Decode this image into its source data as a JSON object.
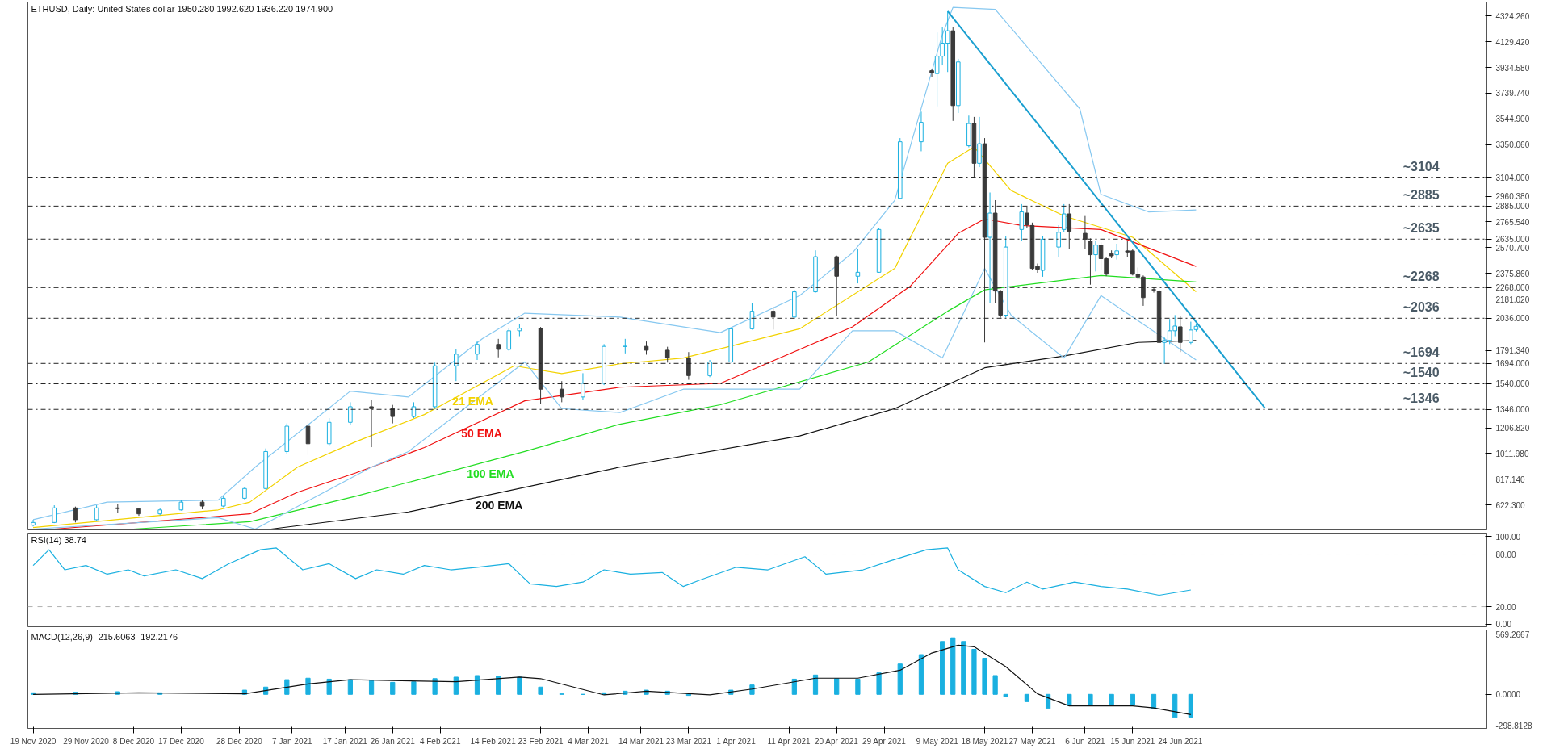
{
  "chart_data": [
    {
      "type": "candlestick",
      "title": "ETHUSD, Daily: United States dollar 1950.280 1992.620 1936.220 1974.900",
      "x": [
        "2020-11-19",
        "2020-11-23",
        "2020-11-27",
        "2020-12-01",
        "2020-12-05",
        "2020-12-09",
        "2020-12-13",
        "2020-12-17",
        "2020-12-21",
        "2020-12-25",
        "2020-12-29",
        "2021-01-02",
        "2021-01-06",
        "2021-01-10",
        "2021-01-14",
        "2021-01-18",
        "2021-01-22",
        "2021-01-26",
        "2021-01-30",
        "2021-02-03",
        "2021-02-07",
        "2021-02-11",
        "2021-02-15",
        "2021-02-17",
        "2021-02-19",
        "2021-02-23",
        "2021-02-27",
        "2021-03-03",
        "2021-03-07",
        "2021-03-11",
        "2021-03-15",
        "2021-03-19",
        "2021-03-23",
        "2021-03-27",
        "2021-03-31",
        "2021-04-04",
        "2021-04-08",
        "2021-04-12",
        "2021-04-16",
        "2021-04-20",
        "2021-04-24",
        "2021-04-28",
        "2021-05-02",
        "2021-05-06",
        "2021-05-08",
        "2021-05-09",
        "2021-05-10",
        "2021-05-11",
        "2021-05-12",
        "2021-05-13",
        "2021-05-15",
        "2021-05-16",
        "2021-05-17",
        "2021-05-18",
        "2021-05-19",
        "2021-05-20",
        "2021-05-21",
        "2021-05-22",
        "2021-05-25",
        "2021-05-26",
        "2021-05-27",
        "2021-05-28",
        "2021-05-29",
        "2021-06-01",
        "2021-06-02",
        "2021-06-03",
        "2021-06-06",
        "2021-06-07",
        "2021-06-08",
        "2021-06-09",
        "2021-06-10",
        "2021-06-11",
        "2021-06-12",
        "2021-06-14",
        "2021-06-15",
        "2021-06-16",
        "2021-06-17",
        "2021-06-19",
        "2021-06-20",
        "2021-06-21",
        "2021-06-22",
        "2021-06-23",
        "2021-06-24",
        "2021-06-26",
        "2021-06-27"
      ],
      "ohlc": [
        [
          470,
          510,
          460,
          490
        ],
        [
          490,
          620,
          485,
          600
        ],
        [
          600,
          610,
          490,
          511
        ],
        [
          511,
          620,
          505,
          600
        ],
        [
          600,
          630,
          560,
          595
        ],
        [
          595,
          600,
          540,
          555
        ],
        [
          555,
          600,
          545,
          585
        ],
        [
          585,
          660,
          580,
          644
        ],
        [
          644,
          660,
          590,
          614
        ],
        [
          614,
          690,
          605,
          673
        ],
        [
          673,
          760,
          665,
          747
        ],
        [
          747,
          1050,
          740,
          1027
        ],
        [
          1027,
          1240,
          1010,
          1219
        ],
        [
          1219,
          1270,
          1000,
          1086
        ],
        [
          1086,
          1280,
          1070,
          1248
        ],
        [
          1248,
          1400,
          1230,
          1366
        ],
        [
          1366,
          1420,
          1060,
          1352
        ],
        [
          1352,
          1380,
          1240,
          1292
        ],
        [
          1292,
          1400,
          1280,
          1366
        ],
        [
          1366,
          1700,
          1350,
          1676
        ],
        [
          1676,
          1800,
          1560,
          1764
        ],
        [
          1764,
          1860,
          1720,
          1838
        ],
        [
          1838,
          1880,
          1740,
          1800
        ],
        [
          1800,
          1960,
          1790,
          1941
        ],
        [
          1941,
          1990,
          1900,
          1960
        ],
        [
          1960,
          1970,
          1390,
          1499
        ],
        [
          1499,
          1560,
          1400,
          1440
        ],
        [
          1440,
          1620,
          1420,
          1543
        ],
        [
          1543,
          1840,
          1530,
          1823
        ],
        [
          1823,
          1880,
          1770,
          1823
        ],
        [
          1823,
          1860,
          1760,
          1794
        ],
        [
          1794,
          1820,
          1700,
          1735
        ],
        [
          1735,
          1780,
          1570,
          1602
        ],
        [
          1602,
          1720,
          1590,
          1705
        ],
        [
          1705,
          1960,
          1700,
          1956
        ],
        [
          1956,
          2150,
          1950,
          2089
        ],
        [
          2089,
          2120,
          1950,
          2045
        ],
        [
          2045,
          2250,
          2040,
          2236
        ],
        [
          2236,
          2550,
          2230,
          2502
        ],
        [
          2502,
          2510,
          2050,
          2354
        ],
        [
          2354,
          2560,
          2300,
          2384
        ],
        [
          2384,
          2720,
          2380,
          2708
        ],
        [
          2944,
          3400,
          2940,
          3372
        ],
        [
          3372,
          3600,
          3300,
          3519
        ],
        [
          3910,
          3920,
          3860,
          3894
        ],
        [
          3888,
          4200,
          3640,
          4020
        ],
        [
          4020,
          4240,
          3950,
          4118
        ],
        [
          4118,
          4360,
          3900,
          4212
        ],
        [
          4212,
          4240,
          3530,
          3646
        ],
        [
          3646,
          4000,
          3590,
          3976
        ],
        [
          3342,
          3570,
          3330,
          3510
        ],
        [
          3510,
          3560,
          3100,
          3209
        ],
        [
          3209,
          3560,
          3180,
          3357
        ],
        [
          3357,
          3400,
          1853,
          2649
        ],
        [
          2649,
          2988,
          2148,
          2832
        ],
        [
          2832,
          2930,
          2148,
          2242
        ],
        [
          2242,
          2250,
          2040,
          2059
        ],
        [
          2059,
          2660,
          2040,
          2575
        ],
        [
          2708,
          2900,
          2620,
          2841
        ],
        [
          2832,
          2880,
          2720,
          2743
        ],
        [
          2738,
          2760,
          2400,
          2413
        ],
        [
          2428,
          2450,
          2380,
          2407
        ],
        [
          2398,
          2660,
          2350,
          2634
        ],
        [
          2575,
          2740,
          2500,
          2687
        ],
        [
          2708,
          2900,
          2690,
          2826
        ],
        [
          2826,
          2900,
          2560,
          2693
        ],
        [
          2679,
          2810,
          2560,
          2634
        ],
        [
          2620,
          2640,
          2290,
          2517
        ],
        [
          2517,
          2620,
          2390,
          2590
        ],
        [
          2590,
          2610,
          2400,
          2487
        ],
        [
          2487,
          2500,
          2355,
          2369
        ],
        [
          2525,
          2550,
          2490,
          2508
        ],
        [
          2517,
          2600,
          2480,
          2546
        ],
        [
          2546,
          2620,
          2500,
          2537
        ],
        [
          2546,
          2560,
          2360,
          2369
        ],
        [
          2369,
          2420,
          2330,
          2348
        ],
        [
          2348,
          2360,
          2130,
          2192
        ],
        [
          2253,
          2270,
          2230,
          2250
        ],
        [
          2242,
          2250,
          1850,
          1853
        ],
        [
          1853,
          1890,
          1690,
          1868
        ],
        [
          1868,
          2030,
          1840,
          1941
        ],
        [
          1941,
          2060,
          1900,
          1977
        ],
        [
          1971,
          2050,
          1780,
          1853
        ],
        [
          1853,
          2010,
          1840,
          1947
        ],
        [
          1950.28,
          1992.62,
          1936.22,
          1974.9
        ]
      ],
      "series": [
        {
          "type": "line",
          "name": "21 EMA",
          "color": "#f2d200",
          "x": [
            "2020-11-19",
            "2020-12-24",
            "2020-12-30",
            "2021-01-08",
            "2021-01-19",
            "2021-02-01",
            "2021-02-18",
            "2021-02-27",
            "2021-03-10",
            "2021-03-22",
            "2021-04-13",
            "2021-05-01",
            "2021-05-11",
            "2021-05-16",
            "2021-05-23",
            "2021-06-02",
            "2021-06-15",
            "2021-06-27"
          ],
          "values": [
            452,
            585,
            644,
            909,
            1101,
            1307,
            1676,
            1617,
            1691,
            1735,
            1956,
            2413,
            3209,
            3333,
            3003,
            2811,
            2649,
            2236
          ]
        },
        {
          "type": "line",
          "name": "50 EMA",
          "color": "#f01010",
          "x": [
            "2020-11-23",
            "2020-12-30",
            "2021-01-08",
            "2021-01-19",
            "2021-02-01",
            "2021-02-20",
            "2021-03-10",
            "2021-03-29",
            "2021-04-23",
            "2021-05-04",
            "2021-05-13",
            "2021-05-18",
            "2021-05-25",
            "2021-06-09",
            "2021-06-27"
          ],
          "values": [
            440,
            555,
            718,
            865,
            1057,
            1411,
            1514,
            1543,
            1971,
            2281,
            2679,
            2788,
            2738,
            2708,
            2428
          ]
        },
        {
          "type": "line",
          "name": "100 EMA",
          "color": "#22dd22",
          "x": [
            "2020-12-08",
            "2020-12-30",
            "2021-01-19",
            "2021-02-20",
            "2021-03-10",
            "2021-03-29",
            "2021-04-26",
            "2021-05-11",
            "2021-05-18",
            "2021-06-09",
            "2021-06-27"
          ],
          "values": [
            440,
            496,
            688,
            1027,
            1234,
            1381,
            1705,
            2089,
            2251,
            2360,
            2310
          ]
        },
        {
          "type": "line",
          "name": "200 EMA",
          "color": "#111111",
          "x": [
            "2021-01-03",
            "2021-01-29",
            "2021-03-10",
            "2021-04-13",
            "2021-05-01",
            "2021-05-18",
            "2021-06-02",
            "2021-06-16",
            "2021-06-27"
          ],
          "values": [
            440,
            570,
            909,
            1145,
            1352,
            1661,
            1750,
            1853,
            1868
          ]
        },
        {
          "type": "line",
          "color": "#87c8f0",
          "x": [
            "2020-11-19",
            "2020-12-03",
            "2020-12-24",
            "2020-12-31",
            "2021-01-18",
            "2021-01-29",
            "2021-02-12",
            "2021-02-20",
            "2021-03-10",
            "2021-03-29",
            "2021-04-13",
            "2021-04-23",
            "2021-05-01",
            "2021-05-10",
            "2021-05-12",
            "2021-05-20",
            "2021-06-05",
            "2021-06-09",
            "2021-06-18",
            "2021-06-27"
          ],
          "values": [
            511,
            644,
            659,
            909,
            1484,
            1440,
            1882,
            2074,
            2045,
            1927,
            2207,
            2531,
            2929,
            4183,
            4389,
            4374,
            3622,
            2974,
            2841,
            2856
          ]
        },
        {
          "type": "line",
          "color": "#87c8f0",
          "x": [
            "2020-11-19",
            "2020-12-24",
            "2020-12-31",
            "2021-01-22",
            "2021-01-29",
            "2021-02-20",
            "2021-02-27",
            "2021-03-10",
            "2021-03-22",
            "2021-04-13",
            "2021-04-23",
            "2021-05-01",
            "2021-05-10",
            "2021-05-18",
            "2021-05-23",
            "2021-06-02",
            "2021-06-09",
            "2021-06-27"
          ],
          "values": [
            440,
            526,
            440,
            909,
            1027,
            1705,
            1352,
            1322,
            1499,
            1499,
            1941,
            1941,
            1735,
            2413,
            2059,
            1735,
            2207,
            1720
          ]
        },
        {
          "type": "line",
          "color": "#1a9fd0",
          "x": [
            "2021-05-11",
            "2021-07-10"
          ],
          "values": [
            4360,
            1358
          ]
        }
      ],
      "ref_lines": [
        {
          "axis": "y",
          "value": 3104,
          "label": "~3104",
          "color": "#222222",
          "line_style": "dashdot"
        },
        {
          "axis": "y",
          "value": 2885,
          "label": "~2885",
          "color": "#222222",
          "line_style": "dashdot"
        },
        {
          "axis": "y",
          "value": 2635,
          "label": "~2635",
          "color": "#222222",
          "line_style": "dashdot"
        },
        {
          "axis": "y",
          "value": 2268,
          "label": "~2268",
          "color": "#222222",
          "line_style": "dashdot"
        },
        {
          "axis": "y",
          "value": 2036,
          "label": "~2036",
          "color": "#222222",
          "line_style": "dashdot"
        },
        {
          "axis": "y",
          "value": 1694,
          "label": "~1694",
          "color": "#222222",
          "line_style": "dashdot"
        },
        {
          "axis": "y",
          "value": 1540,
          "label": "~1540",
          "color": "#222222",
          "line_style": "dashdot"
        },
        {
          "axis": "y",
          "value": 1346,
          "label": "~1346",
          "color": "#222222",
          "line_style": "dashdot"
        }
      ],
      "xlim": [
        "2020-11-18",
        "2021-08-21"
      ],
      "ylim": [
        434,
        4430
      ],
      "yticks": [
        {
          "value": 622.3,
          "label": "622.300"
        },
        {
          "value": 817.14,
          "label": "817.140"
        },
        {
          "value": 1011.98,
          "label": "1011.980"
        },
        {
          "value": 1206.82,
          "label": "1206.820"
        },
        {
          "value": 1346,
          "label": "1346.000"
        },
        {
          "value": 1540,
          "label": "1540.000"
        },
        {
          "value": 1694,
          "label": "1694.000"
        },
        {
          "value": 1791.34,
          "label": "1791.340"
        },
        {
          "value": 2036,
          "label": "2036.000"
        },
        {
          "value": 2181.02,
          "label": "2181.020"
        },
        {
          "value": 2268,
          "label": "2268.000"
        },
        {
          "value": 2375.86,
          "label": "2375.860"
        },
        {
          "value": 2570.7,
          "label": "2570.700"
        },
        {
          "value": 2635,
          "label": "2635.000"
        },
        {
          "value": 2765.54,
          "label": "2765.540"
        },
        {
          "value": 2885,
          "label": "2885.000"
        },
        {
          "value": 2960.38,
          "label": "2960.380"
        },
        {
          "value": 3104,
          "label": "3104.000"
        },
        {
          "value": 3350.06,
          "label": "3350.060"
        },
        {
          "value": 3544.9,
          "label": "3544.900"
        },
        {
          "value": 3739.74,
          "label": "3739.740"
        },
        {
          "value": 3934.58,
          "label": "3934.580"
        },
        {
          "value": 4129.42,
          "label": "4129.420"
        },
        {
          "value": 4324.26,
          "label": "4324.260"
        }
      ],
      "tick_labels": "y",
      "legend": false,
      "grid": false
    },
    {
      "type": "line",
      "title": "RSI(14) 38.74",
      "color": "#1ab0e0",
      "x": [
        "2020-11-19",
        "2020-11-22",
        "2020-11-25",
        "2020-11-29",
        "2020-12-03",
        "2020-12-07",
        "2020-12-10",
        "2020-12-16",
        "2020-12-21",
        "2020-12-26",
        "2021-01-01",
        "2021-01-04",
        "2021-01-09",
        "2021-01-14",
        "2021-01-19",
        "2021-01-23",
        "2021-01-28",
        "2021-02-01",
        "2021-02-06",
        "2021-02-11",
        "2021-02-17",
        "2021-02-21",
        "2021-02-26",
        "2021-03-03",
        "2021-03-07",
        "2021-03-12",
        "2021-03-18",
        "2021-03-22",
        "2021-03-25",
        "2021-04-01",
        "2021-04-07",
        "2021-04-14",
        "2021-04-18",
        "2021-04-25",
        "2021-04-30",
        "2021-05-07",
        "2021-05-11",
        "2021-05-13",
        "2021-05-18",
        "2021-05-22",
        "2021-05-26",
        "2021-05-29",
        "2021-06-04",
        "2021-06-09",
        "2021-06-14",
        "2021-06-20",
        "2021-06-23",
        "2021-06-26"
      ],
      "values": [
        67,
        85,
        62,
        67,
        57,
        62,
        55,
        62,
        52,
        69,
        85,
        87,
        62,
        69,
        52,
        62,
        57,
        67,
        62,
        65,
        69,
        46,
        43,
        48,
        62,
        57,
        59,
        43,
        50,
        65,
        62,
        77,
        57,
        62,
        72,
        85,
        87,
        62,
        43,
        36,
        48,
        40,
        48,
        43,
        40,
        33,
        36,
        39
      ],
      "ylim": [
        -3,
        104
      ],
      "yticks": [
        {
          "value": 0,
          "label": "0.00"
        },
        {
          "value": 20,
          "label": "20.00"
        },
        {
          "value": 80,
          "label": "80.00"
        },
        {
          "value": 100,
          "label": "100.00"
        }
      ],
      "ref_lines": [
        {
          "axis": "y",
          "value": 80,
          "color": "#b0b0b0",
          "line_style": "dashed"
        },
        {
          "axis": "y",
          "value": 20,
          "color": "#b0b0b0",
          "line_style": "dashed"
        }
      ],
      "xlim": [
        "2020-11-18",
        "2021-08-21"
      ],
      "tick_labels": "y",
      "grid": false
    },
    {
      "type": "bar",
      "title": "MACD(12,26,9) -215.6063 -192.2176",
      "series": [
        {
          "type": "bar",
          "color": "#1ab0e0",
          "x": [
            "2020-11-19",
            "2020-11-27",
            "2020-12-05",
            "2020-12-13",
            "2020-12-21",
            "2020-12-29",
            "2021-01-02",
            "2021-01-06",
            "2021-01-10",
            "2021-01-14",
            "2021-01-18",
            "2021-01-22",
            "2021-01-26",
            "2021-01-30",
            "2021-02-03",
            "2021-02-07",
            "2021-02-11",
            "2021-02-15",
            "2021-02-19",
            "2021-02-23",
            "2021-02-27",
            "2021-03-03",
            "2021-03-07",
            "2021-03-11",
            "2021-03-15",
            "2021-03-19",
            "2021-03-23",
            "2021-03-27",
            "2021-03-31",
            "2021-04-04",
            "2021-04-12",
            "2021-04-16",
            "2021-04-20",
            "2021-04-24",
            "2021-04-28",
            "2021-05-02",
            "2021-05-06",
            "2021-05-10",
            "2021-05-12",
            "2021-05-14",
            "2021-05-16",
            "2021-05-18",
            "2021-05-20",
            "2021-05-22",
            "2021-05-26",
            "2021-05-30",
            "2021-06-03",
            "2021-06-07",
            "2021-06-11",
            "2021-06-15",
            "2021-06-19",
            "2021-06-23",
            "2021-06-26"
          ],
          "values": [
            15,
            20,
            25,
            15,
            null,
            40,
            69,
            139,
            153,
            144,
            139,
            129,
            114,
            119,
            149,
            163,
            178,
            173,
            163,
            69,
            5,
            0,
            15,
            30,
            40,
            30,
            -10,
            null,
            40,
            89,
            144,
            183,
            149,
            144,
            203,
            287,
            376,
            500,
            535,
            500,
            426,
            342,
            178,
            -20,
            -69,
            -134,
            -104,
            -104,
            -104,
            -104,
            -134,
            -218,
            -216
          ]
        },
        {
          "type": "line",
          "color": "#111111",
          "x": [
            "2020-11-19",
            "2020-12-09",
            "2020-12-29",
            "2021-01-10",
            "2021-01-18",
            "2021-02-07",
            "2021-02-19",
            "2021-02-23",
            "2021-03-07",
            "2021-03-15",
            "2021-03-27",
            "2021-04-04",
            "2021-04-16",
            "2021-04-24",
            "2021-05-02",
            "2021-05-08",
            "2021-05-13",
            "2021-05-16",
            "2021-05-22",
            "2021-05-28",
            "2021-06-03",
            "2021-06-15",
            "2021-06-19",
            "2021-06-26"
          ],
          "values": [
            0,
            15,
            5,
            99,
            139,
            119,
            163,
            149,
            -5,
            30,
            -5,
            50,
            153,
            153,
            228,
            391,
            465,
            450,
            262,
            5,
            -109,
            -109,
            -129,
            -192
          ]
        }
      ],
      "ylim": [
        -322,
        609
      ],
      "yticks": [
        {
          "value": -298.8128,
          "label": "-298.8128"
        },
        {
          "value": 0,
          "label": "0.0000"
        },
        {
          "value": 569.2667,
          "label": "569.2667"
        }
      ],
      "xlim": [
        "2020-11-18",
        "2021-08-21"
      ],
      "xticks": [
        {
          "value": "2020-11-19",
          "label": "19 Nov 2020"
        },
        {
          "value": "2020-11-29",
          "label": "29 Nov 2020"
        },
        {
          "value": "2020-12-08",
          "label": "8 Dec 2020"
        },
        {
          "value": "2020-12-17",
          "label": "17 Dec 2020"
        },
        {
          "value": "2020-12-28",
          "label": "28 Dec 2020"
        },
        {
          "value": "2021-01-07",
          "label": "7 Jan 2021"
        },
        {
          "value": "2021-01-17",
          "label": "17 Jan 2021"
        },
        {
          "value": "2021-01-26",
          "label": "26 Jan 2021"
        },
        {
          "value": "2021-02-04",
          "label": "4 Feb 2021"
        },
        {
          "value": "2021-02-14",
          "label": "14 Feb 2021"
        },
        {
          "value": "2021-02-23",
          "label": "23 Feb 2021"
        },
        {
          "value": "2021-03-04",
          "label": "4 Mar 2021"
        },
        {
          "value": "2021-03-14",
          "label": "14 Mar 2021"
        },
        {
          "value": "2021-03-23",
          "label": "23 Mar 2021"
        },
        {
          "value": "2021-04-01",
          "label": "1 Apr 2021"
        },
        {
          "value": "2021-04-11",
          "label": "11 Apr 2021"
        },
        {
          "value": "2021-04-20",
          "label": "20 Apr 2021"
        },
        {
          "value": "2021-04-29",
          "label": "29 Apr 2021"
        },
        {
          "value": "2021-05-09",
          "label": "9 May 2021"
        },
        {
          "value": "2021-05-18",
          "label": "18 May 2021"
        },
        {
          "value": "2021-05-27",
          "label": "27 May 2021"
        },
        {
          "value": "2021-06-06",
          "label": "6 Jun 2021"
        },
        {
          "value": "2021-06-15",
          "label": "15 Jun 2021"
        },
        {
          "value": "2021-06-24",
          "label": "24 Jun 2021"
        }
      ],
      "grid": false
    }
  ]
}
